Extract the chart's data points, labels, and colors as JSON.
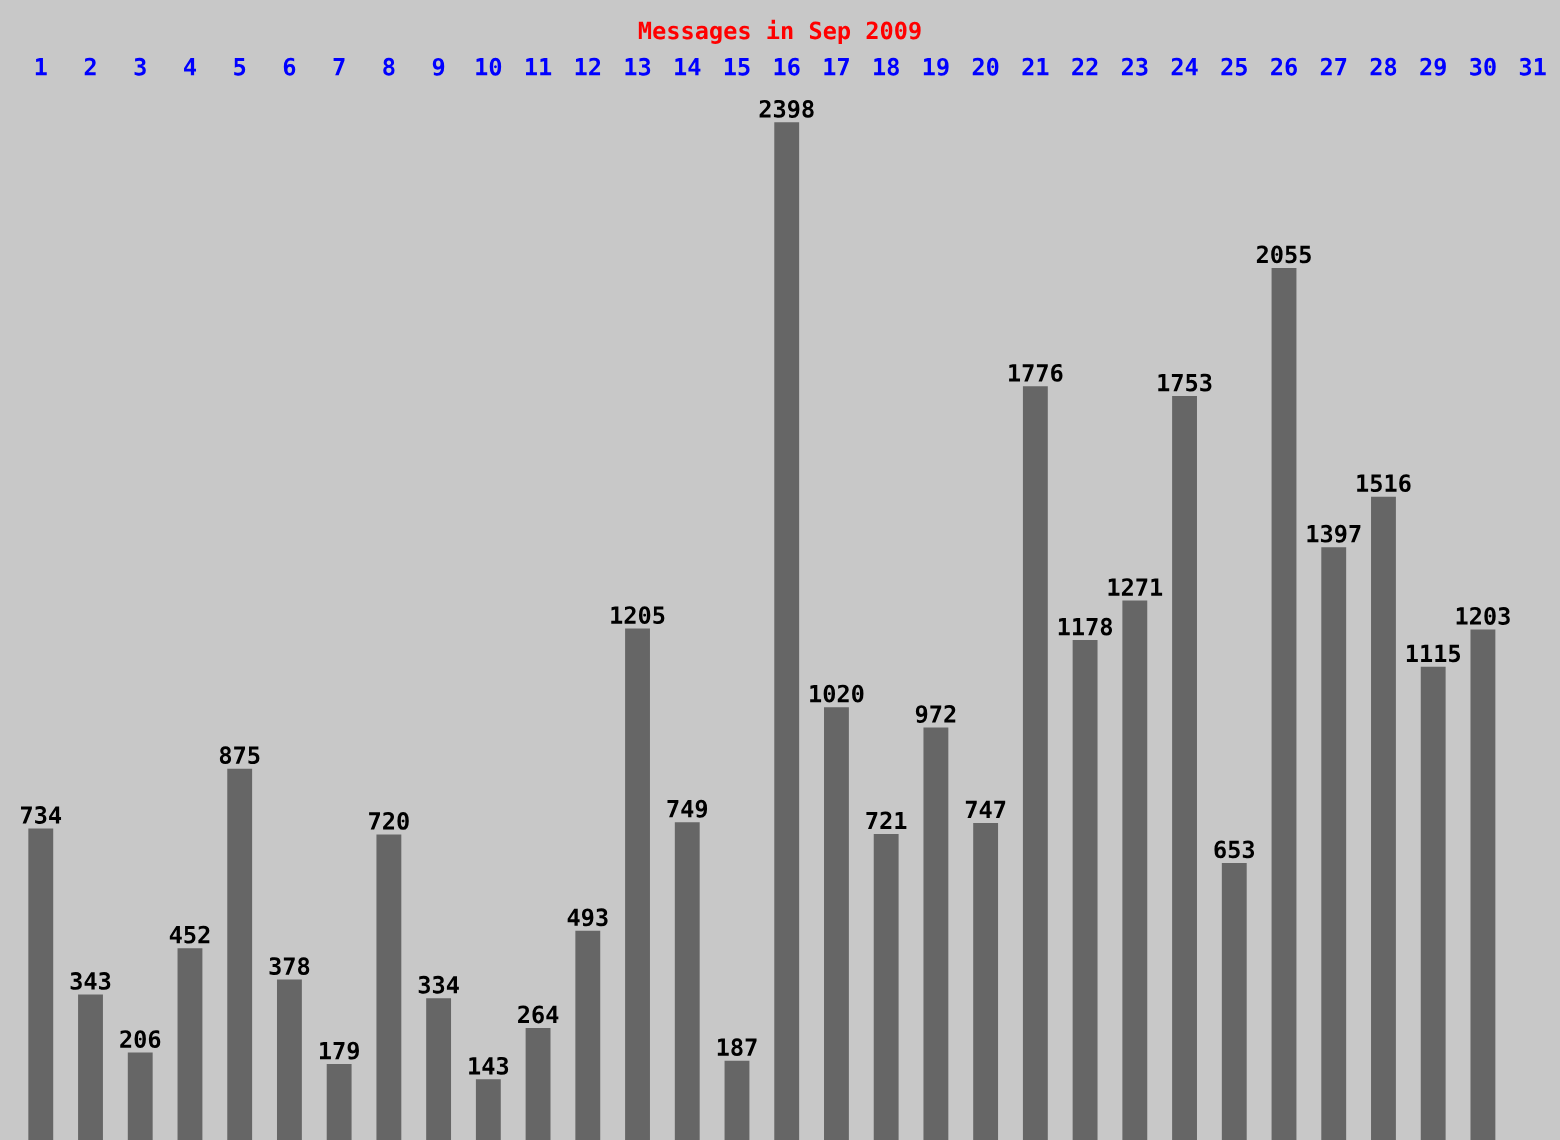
{
  "chart_data": {
    "type": "bar",
    "title": "Messages in Sep 2009",
    "categories": [
      "1",
      "2",
      "3",
      "4",
      "5",
      "6",
      "7",
      "8",
      "9",
      "10",
      "11",
      "12",
      "13",
      "14",
      "15",
      "16",
      "17",
      "18",
      "19",
      "20",
      "21",
      "22",
      "23",
      "24",
      "25",
      "26",
      "27",
      "28",
      "29",
      "30",
      "31"
    ],
    "values": [
      734,
      343,
      206,
      452,
      875,
      378,
      179,
      720,
      334,
      143,
      264,
      493,
      1205,
      749,
      187,
      2398,
      1020,
      721,
      972,
      747,
      1776,
      1178,
      1271,
      1753,
      653,
      2055,
      1397,
      1516,
      1115,
      1203,
      null
    ],
    "color": "#666666",
    "data_labels": true,
    "grid": false,
    "legend": false,
    "tick_labels": "x"
  }
}
